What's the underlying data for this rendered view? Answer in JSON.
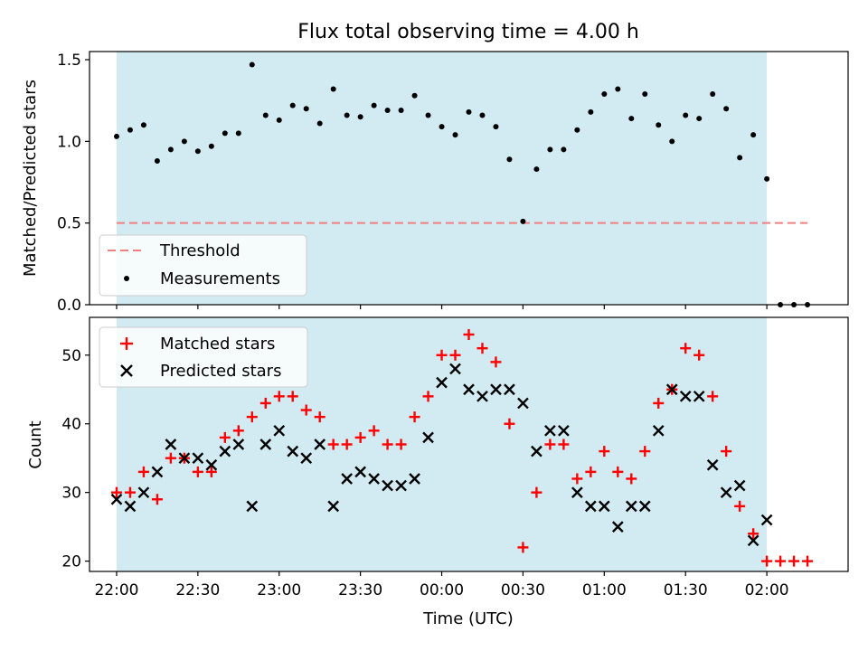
{
  "chart_data": [
    {
      "type": "scatter",
      "title": "Flux total observing time = 4.00 h",
      "xlabel": "",
      "ylabel": "Matched/Predicted stars",
      "ylim": [
        0,
        1.55
      ],
      "yticks": [
        "0.0",
        "0.5",
        "1.0",
        "1.5"
      ],
      "legend_position": "lower-left",
      "threshold": {
        "name": "Threshold",
        "value": 0.5,
        "color": "#f08080"
      },
      "series": [
        {
          "name": "Measurements",
          "color": "#000000",
          "x": [
            "22:00",
            "22:05",
            "22:10",
            "22:15",
            "22:20",
            "22:25",
            "22:30",
            "22:35",
            "22:40",
            "22:45",
            "22:50",
            "22:55",
            "23:00",
            "23:05",
            "23:10",
            "23:15",
            "23:20",
            "23:25",
            "23:30",
            "23:35",
            "23:40",
            "23:45",
            "23:50",
            "23:55",
            "00:00",
            "00:05",
            "00:10",
            "00:15",
            "00:20",
            "00:25",
            "00:30",
            "00:35",
            "00:40",
            "00:45",
            "00:50",
            "00:55",
            "01:00",
            "01:05",
            "01:10",
            "01:15",
            "01:20",
            "01:25",
            "01:30",
            "01:35",
            "01:40",
            "01:45",
            "01:50",
            "01:55",
            "02:00",
            "02:05",
            "02:10",
            "02:15"
          ],
          "values": [
            1.03,
            1.07,
            1.1,
            0.88,
            0.95,
            1.0,
            0.94,
            0.97,
            1.05,
            1.05,
            1.47,
            1.16,
            1.13,
            1.22,
            1.2,
            1.11,
            1.32,
            1.16,
            1.15,
            1.22,
            1.19,
            1.19,
            1.28,
            1.16,
            1.09,
            1.04,
            1.18,
            1.16,
            1.09,
            0.89,
            0.51,
            0.83,
            0.95,
            0.95,
            1.07,
            1.18,
            1.29,
            1.32,
            1.14,
            1.29,
            1.1,
            1.0,
            1.16,
            1.14,
            1.29,
            1.2,
            0.9,
            1.04,
            0.77,
            0.0,
            0.0,
            0.0
          ]
        }
      ]
    },
    {
      "type": "scatter",
      "title": "",
      "xlabel": "Time (UTC)",
      "ylabel": "Count",
      "ylim": [
        18.5,
        55.5
      ],
      "yticks": [
        "20",
        "30",
        "40",
        "50"
      ],
      "xticks": [
        "22:00",
        "22:30",
        "23:00",
        "23:30",
        "00:00",
        "00:30",
        "01:00",
        "01:30",
        "02:00"
      ],
      "legend_position": "upper-left",
      "observing_window": {
        "start": "22:00",
        "end": "02:00",
        "color": "#add8e6"
      },
      "series": [
        {
          "name": "Matched stars",
          "color": "#ff0000",
          "marker": "plus",
          "x": [
            "22:00",
            "22:05",
            "22:10",
            "22:15",
            "22:20",
            "22:25",
            "22:30",
            "22:35",
            "22:40",
            "22:45",
            "22:50",
            "22:55",
            "23:00",
            "23:05",
            "23:10",
            "23:15",
            "23:20",
            "23:25",
            "23:30",
            "23:35",
            "23:40",
            "23:45",
            "23:50",
            "23:55",
            "00:00",
            "00:05",
            "00:10",
            "00:15",
            "00:20",
            "00:25",
            "00:30",
            "00:35",
            "00:40",
            "00:45",
            "00:50",
            "00:55",
            "01:00",
            "01:05",
            "01:10",
            "01:15",
            "01:20",
            "01:25",
            "01:30",
            "01:35",
            "01:40",
            "01:45",
            "01:50",
            "01:55",
            "02:00",
            "02:05",
            "02:10",
            "02:15"
          ],
          "values": [
            30,
            30,
            33,
            29,
            35,
            35,
            33,
            33,
            38,
            39,
            41,
            43,
            44,
            44,
            42,
            41,
            37,
            37,
            38,
            39,
            37,
            37,
            41,
            44,
            50,
            50,
            53,
            51,
            49,
            40,
            22,
            30,
            37,
            37,
            32,
            33,
            36,
            33,
            32,
            36,
            43,
            45,
            51,
            50,
            44,
            36,
            28,
            24,
            20,
            20,
            20,
            20
          ]
        },
        {
          "name": "Predicted stars",
          "color": "#000000",
          "marker": "x",
          "x": [
            "22:00",
            "22:05",
            "22:10",
            "22:15",
            "22:20",
            "22:25",
            "22:30",
            "22:35",
            "22:40",
            "22:45",
            "22:50",
            "22:55",
            "23:00",
            "23:05",
            "23:10",
            "23:15",
            "23:20",
            "23:25",
            "23:30",
            "23:35",
            "23:40",
            "23:45",
            "23:50",
            "23:55",
            "00:00",
            "00:05",
            "00:10",
            "00:15",
            "00:20",
            "00:25",
            "00:30",
            "00:35",
            "00:40",
            "00:45",
            "00:50",
            "00:55",
            "01:00",
            "01:05",
            "01:10",
            "01:15",
            "01:20",
            "01:25",
            "01:30",
            "01:35",
            "01:40",
            "01:45",
            "01:50",
            "01:55",
            "02:00"
          ],
          "values": [
            29,
            28,
            30,
            33,
            37,
            35,
            35,
            34,
            36,
            37,
            28,
            37,
            39,
            36,
            35,
            37,
            28,
            32,
            33,
            32,
            31,
            31,
            32,
            38,
            46,
            48,
            45,
            44,
            45,
            45,
            43,
            36,
            39,
            39,
            30,
            28,
            28,
            25,
            28,
            28,
            39,
            45,
            44,
            44,
            34,
            30,
            31,
            23,
            26
          ]
        }
      ]
    }
  ]
}
